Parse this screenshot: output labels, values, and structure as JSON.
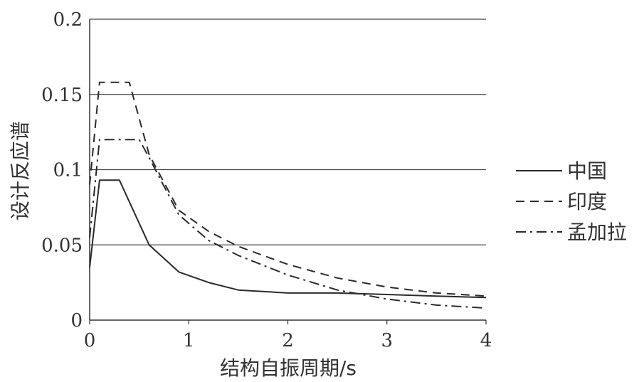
{
  "chart_data": {
    "type": "line",
    "xlabel": "结构自振周期/s",
    "ylabel": "设计反应谱",
    "xlim": [
      0,
      4
    ],
    "ylim": [
      0,
      0.2
    ],
    "xticks": [
      "0",
      "1",
      "2",
      "3",
      "4"
    ],
    "yticks": [
      "0",
      "0.05",
      "0.1",
      "0.15",
      "0.2"
    ],
    "grid": "horizontal",
    "legend_position": "right",
    "series": [
      {
        "name": "中国",
        "style": "solid",
        "x": [
          0,
          0.1,
          0.3,
          0.6,
          0.9,
          1.2,
          1.5,
          2.0,
          2.5,
          3.0,
          3.5,
          4.0
        ],
        "y": [
          0.035,
          0.093,
          0.093,
          0.05,
          0.032,
          0.025,
          0.02,
          0.018,
          0.018,
          0.017,
          0.016,
          0.015
        ]
      },
      {
        "name": "印度",
        "style": "dashed",
        "x": [
          0,
          0.1,
          0.4,
          0.6,
          0.9,
          1.2,
          1.5,
          2.0,
          2.5,
          3.0,
          3.5,
          4.0
        ],
        "y": [
          0.09,
          0.158,
          0.158,
          0.11,
          0.073,
          0.059,
          0.049,
          0.037,
          0.028,
          0.022,
          0.018,
          0.016
        ]
      },
      {
        "name": "孟加拉",
        "style": "dashdot",
        "x": [
          0,
          0.1,
          0.5,
          0.6,
          0.9,
          1.2,
          1.5,
          2.0,
          2.5,
          3.0,
          3.5,
          4.0
        ],
        "y": [
          0.055,
          0.12,
          0.12,
          0.108,
          0.07,
          0.053,
          0.043,
          0.03,
          0.02,
          0.014,
          0.01,
          0.008
        ]
      }
    ]
  }
}
